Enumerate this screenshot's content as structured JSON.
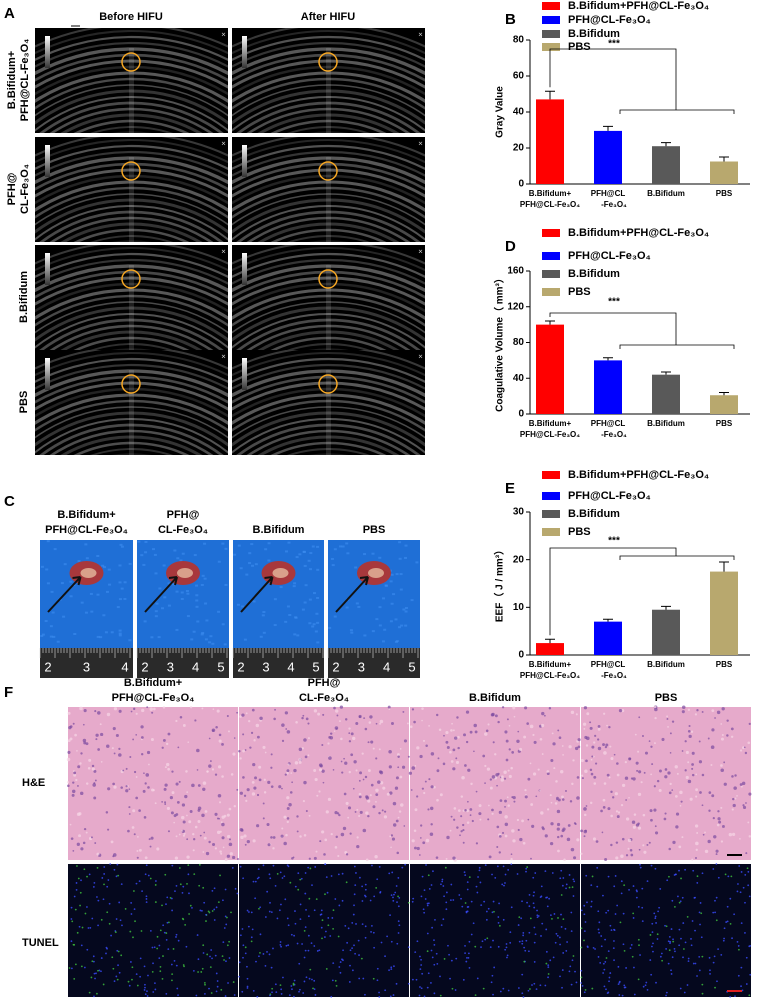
{
  "panel_a": {
    "letter": "A",
    "columns": [
      "Before HIFU",
      "After HIFU"
    ],
    "rows": [
      [
        "B.Bifidum+",
        "PFH@CL-Fe₃O₄"
      ],
      [
        "PFH@",
        "CL-Fe₃O₄"
      ],
      [
        "B.Bifidum"
      ],
      [
        "PBS"
      ]
    ]
  },
  "chart_data": [
    {
      "type": "bar",
      "panel": "B",
      "y_label": "Gray Value",
      "categories": [
        [
          "B.Bifidum+",
          "PFH@CL-Fe₃O₄"
        ],
        [
          "PFH@CL",
          "-Fe₃O₄"
        ],
        [
          "B.Bifidum"
        ],
        [
          "PBS"
        ]
      ],
      "legend": [
        "B.Bifidum+PFH@CL-Fe₃O₄",
        "PFH@CL-Fe₃O₄",
        "B.Bifidum",
        "PBS"
      ],
      "colors": [
        "#ff0000",
        "#0000ff",
        "#595959",
        "#b8a86e"
      ],
      "values": [
        47,
        29.5,
        21,
        12.5
      ],
      "errors": [
        4.5,
        2.5,
        2,
        2.5
      ],
      "ylim": [
        0,
        80
      ],
      "yticks": [
        0,
        20,
        40,
        60,
        80
      ],
      "annotation": "***"
    },
    {
      "type": "bar",
      "panel": "D",
      "y_label": "Coagulative Volume（ mm³）",
      "categories": [
        [
          "B.Bifidum+",
          "PFH@CL-Fe₃O₄"
        ],
        [
          "PFH@CL",
          "-Fe₃O₄"
        ],
        [
          "B.Bifidum"
        ],
        [
          "PBS"
        ]
      ],
      "legend": [
        "B.Bifidum+PFH@CL-Fe₃O₄",
        "PFH@CL-Fe₃O₄",
        "B.Bifidum",
        "PBS"
      ],
      "colors": [
        "#ff0000",
        "#0000ff",
        "#595959",
        "#b8a86e"
      ],
      "values": [
        100,
        60,
        44,
        21
      ],
      "errors": [
        4,
        3,
        3,
        3
      ],
      "ylim": [
        0,
        160
      ],
      "yticks": [
        0,
        40,
        80,
        120,
        160
      ],
      "annotation": "***"
    },
    {
      "type": "bar",
      "panel": "E",
      "y_label": "EEF（ J / mm³）",
      "categories": [
        [
          "B.Bifidum+",
          "PFH@CL-Fe₃O₄"
        ],
        [
          "PFH@CL",
          "-Fe₃O₄"
        ],
        [
          "B.Bifidum"
        ],
        [
          "PBS"
        ]
      ],
      "legend": [
        "B.Bifidum+PFH@CL-Fe₃O₄",
        "PFH@CL-Fe₃O₄",
        "B.Bifidum",
        "PBS"
      ],
      "colors": [
        "#ff0000",
        "#0000ff",
        "#595959",
        "#b8a86e"
      ],
      "values": [
        2.5,
        7,
        9.5,
        17.5
      ],
      "errors": [
        0.8,
        0.5,
        0.7,
        2
      ],
      "ylim": [
        0,
        30
      ],
      "yticks": [
        0,
        10,
        20,
        30
      ],
      "annotation": "***"
    }
  ],
  "panel_c": {
    "letter": "C",
    "columns": [
      [
        "B.Bifidum+",
        "PFH@CL-Fe₃O₄"
      ],
      [
        "PFH@",
        "CL-Fe₃O₄"
      ],
      [
        "B.Bifidum"
      ],
      [
        "PBS"
      ]
    ],
    "rulers": [
      [
        "2",
        "3",
        "4"
      ],
      [
        "2",
        "3",
        "4",
        "5"
      ],
      [
        "2",
        "3",
        "4",
        "5"
      ],
      [
        "2",
        "3",
        "4",
        "5"
      ]
    ]
  },
  "panel_f": {
    "letter": "F",
    "columns": [
      [
        "B.Bifidum+",
        "PFH@CL-Fe₃O₄"
      ],
      [
        "PFH@",
        "CL-Fe₃O₄"
      ],
      [
        "B.Bifidum"
      ],
      [
        "PBS"
      ]
    ],
    "rows": [
      "H&E",
      "TUNEL"
    ]
  }
}
